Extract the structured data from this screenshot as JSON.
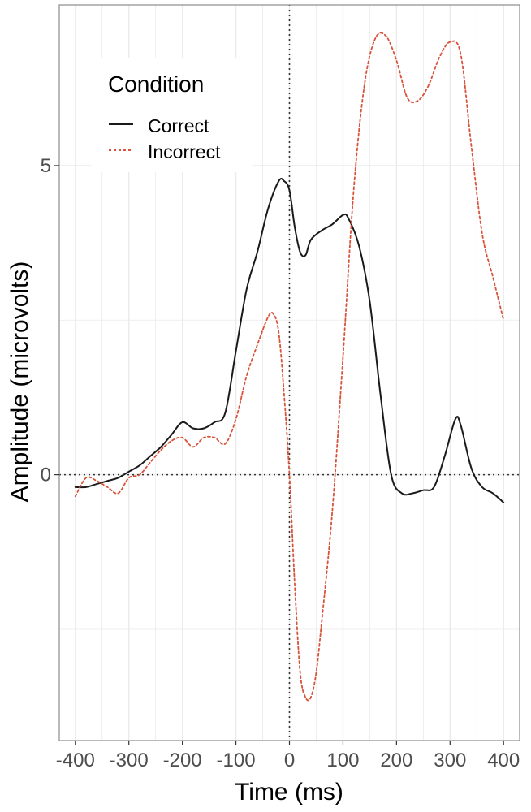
{
  "chart_data": {
    "type": "line",
    "xlabel": "Time (ms)",
    "ylabel": "Amplitude (microvolts)",
    "xlim": [
      -430,
      430
    ],
    "ylim": [
      -4.3,
      7.6
    ],
    "x_ticks": [
      -400,
      -300,
      -200,
      -100,
      0,
      100,
      200,
      300,
      400
    ],
    "x_tick_labels": [
      "-400",
      "-300",
      "-200",
      "-100",
      "0",
      "100",
      "200",
      "300",
      "400"
    ],
    "y_ticks": [
      0,
      5
    ],
    "y_tick_labels": [
      "0",
      "5"
    ],
    "reference_lines": {
      "x": 0,
      "y": 0,
      "style": "dotted"
    },
    "grid": true,
    "legend": {
      "title": "Condition",
      "position": "top-left",
      "entries": [
        "Correct",
        "Incorrect"
      ]
    },
    "colors": {
      "correct": "#1a1a1a",
      "incorrect": "#d9523a",
      "grid": "#ebebeb",
      "panel_border": "#8c8c8c"
    },
    "series": [
      {
        "name": "Correct",
        "line_style": "solid",
        "x": [
          -400,
          -380,
          -360,
          -340,
          -320,
          -300,
          -280,
          -260,
          -240,
          -220,
          -200,
          -180,
          -160,
          -140,
          -120,
          -100,
          -80,
          -60,
          -40,
          -20,
          -10,
          0,
          10,
          20,
          30,
          40,
          60,
          80,
          100,
          110,
          130,
          150,
          170,
          190,
          210,
          230,
          250,
          270,
          290,
          310,
          320,
          340,
          360,
          380,
          400
        ],
        "y": [
          -0.2,
          -0.2,
          -0.15,
          -0.1,
          -0.05,
          0.05,
          0.15,
          0.3,
          0.45,
          0.65,
          0.85,
          0.75,
          0.75,
          0.85,
          1.0,
          2.0,
          3.0,
          3.6,
          4.3,
          4.75,
          4.75,
          4.6,
          4.0,
          3.6,
          3.55,
          3.8,
          3.95,
          4.05,
          4.2,
          4.15,
          3.7,
          2.8,
          1.3,
          0.0,
          -0.3,
          -0.3,
          -0.25,
          -0.2,
          0.3,
          0.9,
          0.8,
          0.1,
          -0.2,
          -0.3,
          -0.45
        ]
      },
      {
        "name": "Incorrect",
        "line_style": "dotted",
        "x": [
          -400,
          -380,
          -360,
          -340,
          -320,
          -300,
          -280,
          -260,
          -240,
          -220,
          -200,
          -180,
          -160,
          -140,
          -120,
          -100,
          -80,
          -60,
          -40,
          -30,
          -20,
          -10,
          0,
          10,
          20,
          30,
          40,
          50,
          60,
          80,
          100,
          120,
          140,
          160,
          180,
          200,
          220,
          240,
          260,
          280,
          300,
          320,
          340,
          360,
          380,
          400
        ],
        "y": [
          -0.35,
          -0.05,
          -0.1,
          -0.2,
          -0.3,
          -0.05,
          0.0,
          0.2,
          0.4,
          0.55,
          0.6,
          0.45,
          0.6,
          0.6,
          0.5,
          0.9,
          1.6,
          2.1,
          2.55,
          2.6,
          2.3,
          1.3,
          0.0,
          -1.8,
          -3.2,
          -3.6,
          -3.6,
          -3.2,
          -2.4,
          -0.6,
          1.9,
          4.6,
          6.3,
          7.05,
          7.1,
          6.7,
          6.1,
          6.05,
          6.3,
          6.75,
          7.0,
          6.8,
          5.3,
          3.9,
          3.2,
          2.5
        ]
      }
    ]
  }
}
